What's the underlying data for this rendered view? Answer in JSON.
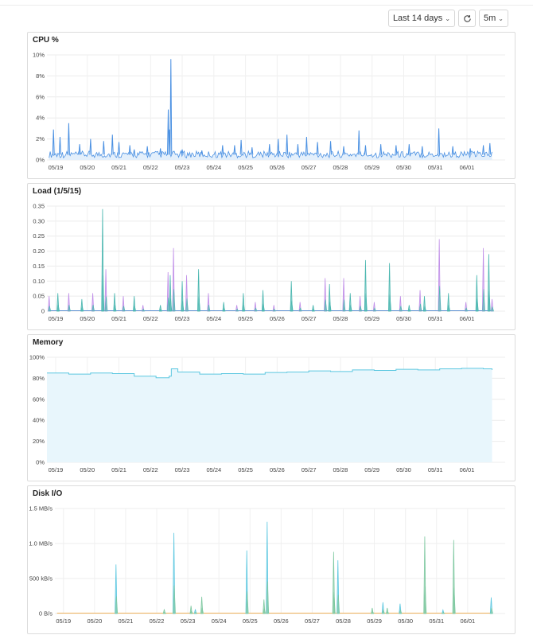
{
  "toolbar": {
    "range_label": "Last 14 days",
    "refresh_icon": "refresh-icon",
    "interval_label": "5m",
    "chevron_icon": "chevron-down-icon"
  },
  "chart_data": [
    {
      "type": "area",
      "title": "CPU %",
      "color": "#4a90e2",
      "fill": "#e3effb",
      "y_ticks": [
        "0%",
        "2%",
        "4%",
        "6%",
        "8%",
        "10%"
      ],
      "ylim": [
        0,
        10
      ],
      "x_ticks": [
        "05/19",
        "05/20",
        "05/21",
        "05/22",
        "05/23",
        "05/24",
        "05/25",
        "05/26",
        "05/27",
        "05/28",
        "05/29",
        "05/30",
        "05/31",
        "06/01"
      ],
      "grid": true,
      "baseline": 0.5,
      "spikes": [
        [
          0.3,
          2.9
        ],
        [
          0.6,
          2.2
        ],
        [
          1.0,
          3.5
        ],
        [
          1.5,
          1.5
        ],
        [
          2.0,
          2.0
        ],
        [
          2.6,
          1.8
        ],
        [
          3.0,
          2.4
        ],
        [
          3.3,
          1.7
        ],
        [
          3.8,
          1.4
        ],
        [
          4.0,
          1.0
        ],
        [
          4.6,
          1.3
        ],
        [
          5.2,
          1.1
        ],
        [
          5.56,
          4.8
        ],
        [
          5.62,
          2.9
        ],
        [
          5.68,
          9.6
        ],
        [
          6.2,
          1.0
        ],
        [
          7.1,
          0.9
        ],
        [
          8.05,
          1.4
        ],
        [
          8.6,
          1.4
        ],
        [
          8.9,
          1.9
        ],
        [
          9.4,
          1.2
        ],
        [
          10.2,
          1.5
        ],
        [
          10.6,
          2.0
        ],
        [
          11.0,
          2.4
        ],
        [
          11.5,
          1.5
        ],
        [
          11.9,
          2.2
        ],
        [
          12.4,
          1.7
        ],
        [
          13.0,
          1.8
        ],
        [
          13.6,
          1.3
        ],
        [
          14.3,
          2.8
        ],
        [
          14.6,
          1.4
        ],
        [
          15.3,
          1.5
        ],
        [
          16.0,
          1.4
        ],
        [
          16.6,
          1.5
        ],
        [
          17.2,
          1.3
        ],
        [
          17.96,
          3.0
        ],
        [
          18.6,
          1.3
        ],
        [
          19.4,
          1.1
        ],
        [
          20.0,
          1.4
        ],
        [
          20.3,
          1.6
        ]
      ]
    },
    {
      "type": "area",
      "title": "Load (1/5/15)",
      "colors": [
        "#4bb7b0",
        "#c08ee8",
        "#5b8fd0"
      ],
      "y_ticks": [
        "0",
        "0.05",
        "0.10",
        "0.15",
        "0.20",
        "0.25",
        "0.30",
        "0.35"
      ],
      "ylim": [
        0,
        0.35
      ],
      "x_ticks": [
        "05/19",
        "05/20",
        "05/21",
        "05/22",
        "05/23",
        "05/24",
        "05/25",
        "05/26",
        "05/27",
        "05/28",
        "05/29",
        "05/30",
        "05/31",
        "06/01"
      ],
      "grid": true,
      "spikes": [
        [
          0.1,
          0.05
        ],
        [
          0.5,
          0.06
        ],
        [
          1.0,
          0.06
        ],
        [
          1.6,
          0.04
        ],
        [
          2.1,
          0.06
        ],
        [
          2.55,
          0.34
        ],
        [
          2.7,
          0.14
        ],
        [
          3.1,
          0.06
        ],
        [
          3.5,
          0.05
        ],
        [
          4.0,
          0.05
        ],
        [
          4.4,
          0.02
        ],
        [
          5.2,
          0.02
        ],
        [
          5.55,
          0.13
        ],
        [
          5.65,
          0.12
        ],
        [
          5.8,
          0.21
        ],
        [
          6.2,
          0.1
        ],
        [
          6.4,
          0.12
        ],
        [
          6.95,
          0.14
        ],
        [
          7.4,
          0.06
        ],
        [
          8.1,
          0.03
        ],
        [
          8.7,
          0.02
        ],
        [
          9.0,
          0.06
        ],
        [
          9.55,
          0.03
        ],
        [
          9.9,
          0.07
        ],
        [
          10.4,
          0.02
        ],
        [
          11.2,
          0.1
        ],
        [
          11.6,
          0.03
        ],
        [
          12.2,
          0.02
        ],
        [
          12.75,
          0.11
        ],
        [
          12.95,
          0.09
        ],
        [
          13.6,
          0.11
        ],
        [
          13.9,
          0.06
        ],
        [
          14.35,
          0.05
        ],
        [
          14.6,
          0.17
        ],
        [
          15.0,
          0.03
        ],
        [
          15.7,
          0.16
        ],
        [
          16.2,
          0.05
        ],
        [
          16.6,
          0.02
        ],
        [
          17.1,
          0.07
        ],
        [
          17.3,
          0.05
        ],
        [
          17.98,
          0.24
        ],
        [
          18.4,
          0.06
        ],
        [
          19.2,
          0.03
        ],
        [
          19.7,
          0.12
        ],
        [
          20.0,
          0.21
        ],
        [
          20.25,
          0.19
        ],
        [
          20.4,
          0.04
        ]
      ]
    },
    {
      "type": "area",
      "title": "Memory",
      "color": "#5bc7e0",
      "fill": "#e8f6fc",
      "y_ticks": [
        "0%",
        "20%",
        "40%",
        "60%",
        "80%",
        "100%"
      ],
      "ylim": [
        0,
        100
      ],
      "x_ticks": [
        "05/19",
        "05/20",
        "05/21",
        "05/22",
        "05/23",
        "05/24",
        "05/25",
        "05/26",
        "05/27",
        "05/28",
        "05/29",
        "05/30",
        "05/31",
        "06/01"
      ],
      "grid": true,
      "points": [
        [
          0,
          85
        ],
        [
          1,
          84
        ],
        [
          2,
          85
        ],
        [
          3,
          84.5
        ],
        [
          4,
          82
        ],
        [
          5,
          80.5
        ],
        [
          5.6,
          82
        ],
        [
          5.7,
          89
        ],
        [
          6,
          86
        ],
        [
          7,
          84
        ],
        [
          8,
          84.5
        ],
        [
          9,
          84
        ],
        [
          10,
          85.5
        ],
        [
          11,
          86
        ],
        [
          12,
          87
        ],
        [
          13,
          86.5
        ],
        [
          14,
          88
        ],
        [
          15,
          87.5
        ],
        [
          16,
          88.5
        ],
        [
          17,
          88
        ],
        [
          18,
          89
        ],
        [
          19,
          89.5
        ],
        [
          20,
          89
        ],
        [
          20.4,
          88
        ]
      ]
    },
    {
      "type": "area",
      "title": "Disk I/O",
      "colors": [
        "#7ec8a0",
        "#5bc7e0",
        "#f0b35b"
      ],
      "y_ticks": [
        "0 B/s",
        "500 kB/s",
        "1.0 MB/s",
        "1.5 MB/s"
      ],
      "ylim": [
        0,
        1.5
      ],
      "x_ticks": [
        "05/19",
        "05/20",
        "05/21",
        "05/22",
        "05/23",
        "05/24",
        "05/25",
        "05/26",
        "05/27",
        "05/28",
        "05/29",
        "05/30",
        "05/31",
        "06/01"
      ],
      "grid": true,
      "spikes": [
        [
          2.85,
          0.7
        ],
        [
          5.1,
          0.06
        ],
        [
          5.55,
          1.15
        ],
        [
          6.35,
          0.11
        ],
        [
          6.55,
          0.06
        ],
        [
          6.85,
          0.24
        ],
        [
          8.95,
          0.9
        ],
        [
          9.75,
          0.2
        ],
        [
          9.9,
          1.31
        ],
        [
          13.0,
          0.88
        ],
        [
          13.2,
          0.76
        ],
        [
          14.8,
          0.08
        ],
        [
          15.3,
          0.16
        ],
        [
          15.5,
          0.08
        ],
        [
          16.1,
          0.14
        ],
        [
          17.25,
          1.1
        ],
        [
          18.1,
          0.05
        ],
        [
          18.6,
          1.05
        ],
        [
          20.35,
          0.23
        ]
      ]
    }
  ]
}
